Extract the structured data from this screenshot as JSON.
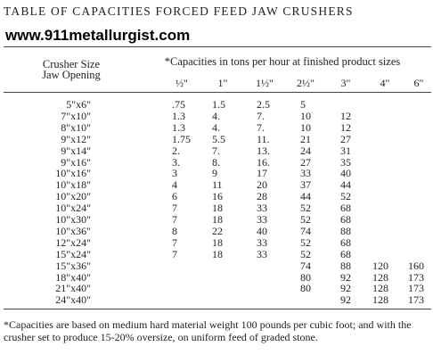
{
  "header": {
    "title": "TABLE OF CAPACITIES FORCED FEED JAW CRUSHERS",
    "watermark": "www.911metallurgist.com"
  },
  "table": {
    "row_header": [
      "Crusher Size",
      "Jaw Opening"
    ],
    "group_header": "*Capacities in tons per hour at finished product sizes",
    "columns": [
      "½\"",
      "1\"",
      "1½\"",
      "2½\"",
      "3\"",
      "4\"",
      "6\""
    ],
    "rows": [
      [
        "5\"x6\"",
        ".75",
        "1.5",
        "2.5",
        "5",
        null,
        null,
        null
      ],
      [
        "7\"x10\"",
        "1.3",
        "4.",
        "7.",
        "10",
        "12",
        null,
        null
      ],
      [
        "8\"x10\"",
        "1.3",
        "4.",
        "7.",
        "10",
        "12",
        null,
        null
      ],
      [
        "9\"x12\"",
        "1.75",
        "5.5",
        "11.",
        "21",
        "27",
        null,
        null
      ],
      [
        "9\"x14\"",
        "2.",
        "7.",
        "13.",
        "24",
        "31",
        null,
        null
      ],
      [
        "9\"x16\"",
        "3.",
        "8.",
        "16.",
        "27",
        "35",
        null,
        null
      ],
      [
        "10\"x16\"",
        "3",
        "9",
        "17",
        "33",
        "40",
        null,
        null
      ],
      [
        "10\"x18\"",
        "4",
        "11",
        "20",
        "37",
        "44",
        null,
        null
      ],
      [
        "10\"x20\"",
        "6",
        "16",
        "28",
        "44",
        "52",
        null,
        null
      ],
      [
        "10\"x24\"",
        "7",
        "18",
        "33",
        "52",
        "68",
        null,
        null
      ],
      [
        "10\"x30\"",
        "7",
        "18",
        "33",
        "52",
        "68",
        null,
        null
      ],
      [
        "10\"x36\"",
        "8",
        "22",
        "40",
        "74",
        "88",
        null,
        null
      ],
      [
        "12\"x24\"",
        "7",
        "18",
        "33",
        "52",
        "68",
        null,
        null
      ],
      [
        "15\"x24\"",
        "7",
        "18",
        "33",
        "52",
        "68",
        null,
        null
      ],
      [
        "15\"x36\"",
        null,
        null,
        null,
        "74",
        "88",
        "120",
        "160"
      ],
      [
        "18\"x40\"",
        null,
        null,
        null,
        "80",
        "92",
        "128",
        "173"
      ],
      [
        "21\"x40\"",
        null,
        null,
        null,
        "80",
        "92",
        "128",
        "173"
      ],
      [
        "24\"x40\"",
        null,
        null,
        null,
        null,
        "92",
        "128",
        "173"
      ]
    ]
  },
  "footnote": "*Capacities are based on medium hard material weight 100 pounds per cubic foot; and with the crusher set to produce 15-20% oversize, on uniform feed of graded stone."
}
